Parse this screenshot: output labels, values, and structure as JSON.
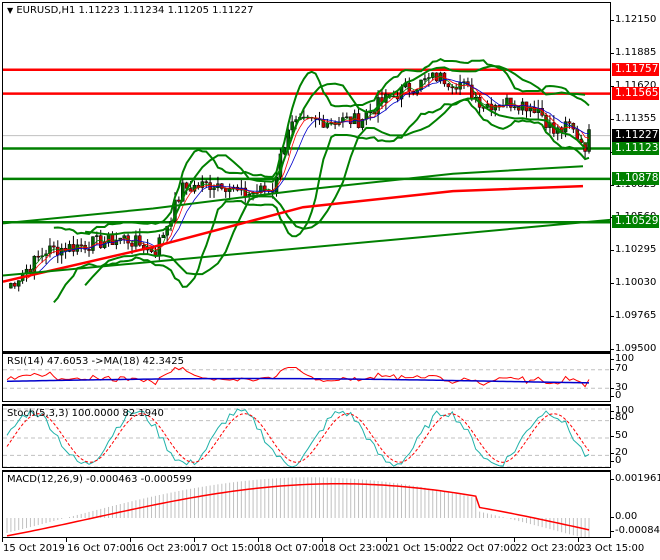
{
  "header": {
    "symbol_title": "EURUSD,H1  1.11223 1.11234 1.11205 1.11227",
    "dropdown_icon": "triangle-down"
  },
  "main_chart": {
    "price_ticks": [
      "1.12150",
      "1.11885",
      "1.11620",
      "1.11355",
      "1.11090",
      "1.10825",
      "1.10560",
      "1.10295",
      "1.10030",
      "1.09765",
      "1.09500"
    ],
    "price_labels": [
      {
        "value": "1.11757",
        "color": "#ff0000"
      },
      {
        "value": "1.11565",
        "color": "#ff0000"
      },
      {
        "value": "1.11227",
        "color": "#000000"
      },
      {
        "value": "1.11123",
        "color": "#008000"
      },
      {
        "value": "1.10878",
        "color": "#008000"
      },
      {
        "value": "1.10529",
        "color": "#008000"
      }
    ]
  },
  "rsi": {
    "title": "RSI(14) 47.6053  ->MA(18) 42.3425",
    "ticks": [
      "100",
      "70",
      "30",
      "0"
    ]
  },
  "stoch": {
    "title": "Stoch(5,3,3) 100.0000 82.1940",
    "ticks": [
      "100",
      "80",
      "50",
      "20",
      "0"
    ]
  },
  "macd": {
    "title": "MACD(12,26,9) -0.000463 -0.000599",
    "ticks": [
      "0.001961",
      "0.00",
      "-0.000841"
    ]
  },
  "time_axis": [
    "15 Oct 2019",
    "16 Oct 07:00",
    "16 Oct 23:00",
    "17 Oct 15:00",
    "18 Oct 07:00",
    "18 Oct 23:00",
    "21 Oct 15:00",
    "22 Oct 07:00",
    "22 Oct 23:00",
    "23 Oct 15:00"
  ],
  "chart_data": [
    {
      "type": "line",
      "title": "EURUSD,H1  1.11223 1.11234 1.11205 1.11227",
      "subtype": "candlestick",
      "ohlc_last": {
        "open": 1.11223,
        "high": 1.11234,
        "low": 1.11205,
        "close": 1.11227
      },
      "x": [
        "15 Oct 2019",
        "16 Oct 07:00",
        "16 Oct 23:00",
        "17 Oct 15:00",
        "18 Oct 07:00",
        "18 Oct 23:00",
        "21 Oct 15:00",
        "22 Oct 07:00",
        "22 Oct 23:00",
        "23 Oct 15:00"
      ],
      "close_approx": [
        1.103,
        1.1045,
        1.1075,
        1.113,
        1.114,
        1.117,
        1.1145,
        1.114,
        1.112,
        1.1123
      ],
      "ylim": [
        1.095,
        1.1228
      ],
      "horizontal_levels": {
        "resistance": [
          1.11757,
          1.11565
        ],
        "support": [
          1.11123,
          1.10878,
          1.10529
        ]
      },
      "series": [
        {
          "name": "Bollinger Upper",
          "color": "#008000"
        },
        {
          "name": "Bollinger Lower",
          "color": "#008000"
        },
        {
          "name": "MA long (red)",
          "color": "#ff0000"
        },
        {
          "name": "MA long (green)",
          "color": "#008000"
        }
      ],
      "grid": false
    },
    {
      "type": "line",
      "title": "RSI(14) 47.6053  ->MA(18) 42.3425",
      "series": [
        {
          "name": "RSI(14)",
          "last": 47.6053,
          "color": "#ff0000"
        },
        {
          "name": "MA(18)",
          "last": 42.3425,
          "color": "#0000cc"
        }
      ],
      "ylim": [
        0,
        100
      ],
      "levels": [
        70,
        30
      ]
    },
    {
      "type": "line",
      "title": "Stoch(5,3,3) 100.0000 82.1940",
      "series": [
        {
          "name": "%K",
          "last": 100.0,
          "color": "#20b2aa"
        },
        {
          "name": "%D",
          "last": 82.194,
          "color": "#ff0000"
        }
      ],
      "ylim": [
        0,
        100
      ],
      "levels": [
        80,
        50,
        20
      ]
    },
    {
      "type": "bar",
      "title": "MACD(12,26,9) -0.000463 -0.000599",
      "series": [
        {
          "name": "MACD",
          "last": -0.000463,
          "color": "#c0c0c0"
        },
        {
          "name": "Signal",
          "last": -0.000599,
          "color": "#ff0000"
        }
      ],
      "ylim": [
        -0.000841,
        0.001961
      ]
    }
  ]
}
